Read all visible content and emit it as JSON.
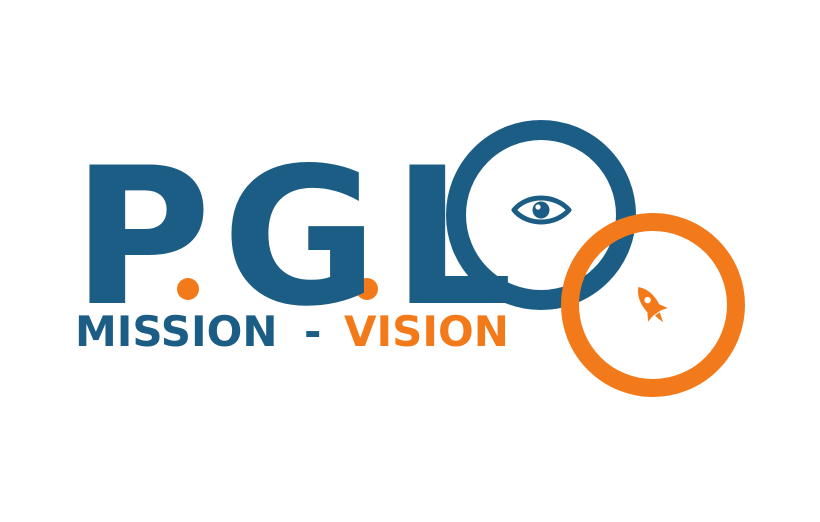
{
  "logo": {
    "letters": [
      "P",
      "G",
      "L"
    ],
    "dot": ".",
    "tagline": {
      "mission": "MISSION",
      "separator": "-",
      "vision": "VISION"
    },
    "icons": {
      "eye": "eye-icon",
      "rocket": "rocket-icon"
    },
    "colors": {
      "blue": "#1c5d85",
      "orange": "#f27a1a",
      "background": "#ffffff"
    }
  }
}
